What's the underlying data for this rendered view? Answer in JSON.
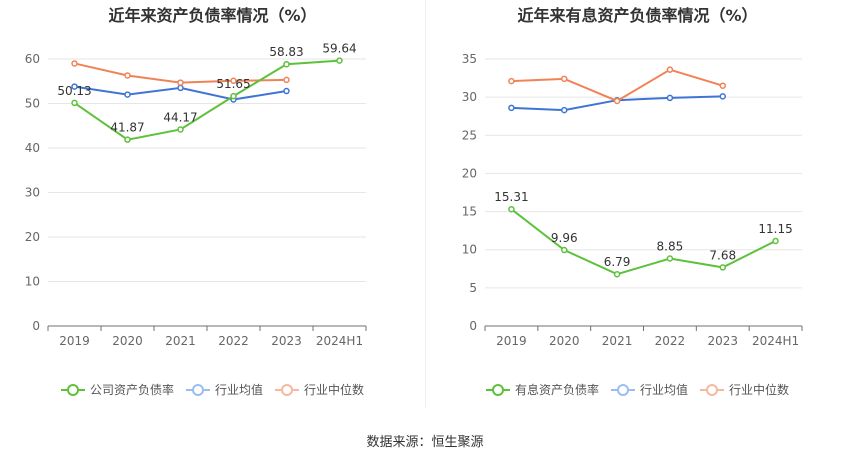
{
  "charts": [
    {
      "id": "left",
      "title": "近年来资产负债率情况（%）",
      "chart_data": {
        "type": "line",
        "title": "近年来资产负债率情况（%）",
        "categories": [
          "2019",
          "2020",
          "2021",
          "2022",
          "2023",
          "2024H1"
        ],
        "ylim": [
          0,
          60
        ],
        "yticks": [
          0,
          10,
          20,
          30,
          40,
          50,
          60
        ],
        "grid": true,
        "legend_position": "bottom",
        "series": [
          {
            "name": "公司资产负债率",
            "color": "#5ec13c",
            "values": [
              50.13,
              41.87,
              44.17,
              51.65,
              58.83,
              59.64
            ],
            "labels": [
              "50.13",
              "41.87",
              "44.17",
              "51.65",
              "58.83",
              "59.64"
            ]
          },
          {
            "name": "行业均值",
            "color": "#3f74d6",
            "values": [
              53.8,
              52.0,
              53.5,
              50.9,
              52.8,
              null
            ]
          },
          {
            "name": "行业中位数",
            "color": "#f08355",
            "values": [
              59.0,
              56.3,
              54.7,
              55.1,
              55.3,
              null
            ]
          }
        ]
      }
    },
    {
      "id": "right",
      "title": "近年来有息资产负债率情况（%）",
      "chart_data": {
        "type": "line",
        "title": "近年来有息资产负债率情况（%）",
        "categories": [
          "2019",
          "2020",
          "2021",
          "2022",
          "2023",
          "2024H1"
        ],
        "ylim": [
          0,
          35
        ],
        "yticks": [
          0,
          5,
          10,
          15,
          20,
          25,
          30,
          35
        ],
        "grid": true,
        "legend_position": "bottom",
        "series": [
          {
            "name": "有息资产负债率",
            "color": "#5ec13c",
            "values": [
              15.31,
              9.96,
              6.79,
              8.85,
              7.68,
              11.15
            ],
            "labels": [
              "15.31",
              "9.96",
              "6.79",
              "8.85",
              "7.68",
              "11.15"
            ]
          },
          {
            "name": "行业均值",
            "color": "#3f74d6",
            "values": [
              28.6,
              28.3,
              29.6,
              29.9,
              30.1,
              null
            ]
          },
          {
            "name": "行业中位数",
            "color": "#f08355",
            "values": [
              32.1,
              32.4,
              29.5,
              33.6,
              31.5,
              null
            ]
          }
        ]
      }
    }
  ],
  "source": "数据来源：恒生聚源"
}
